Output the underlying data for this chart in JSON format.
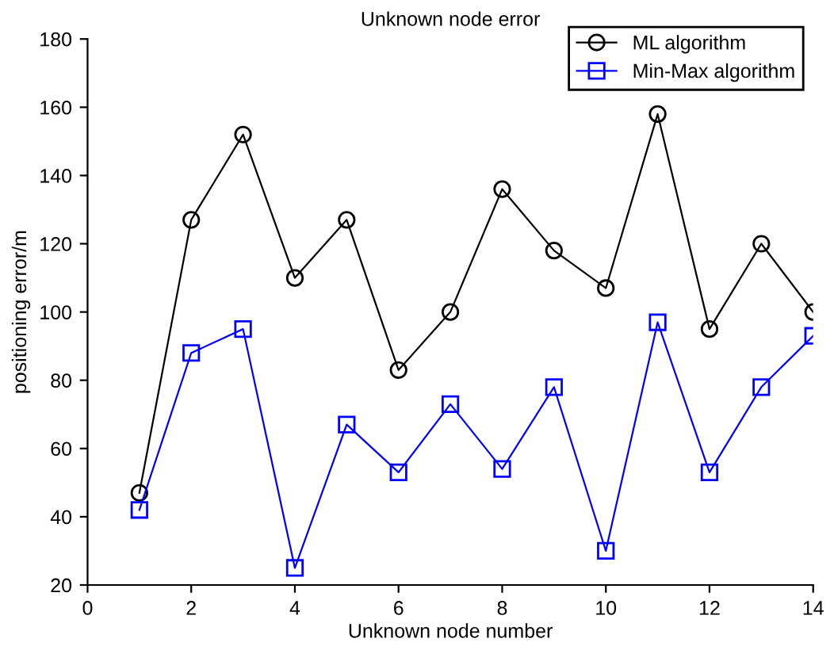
{
  "chart_data": {
    "type": "line",
    "title": "Unknown node error",
    "xlabel": "Unknown node number",
    "ylabel": "positioning error/m",
    "x": [
      1,
      2,
      3,
      4,
      5,
      6,
      7,
      8,
      9,
      10,
      11,
      12,
      13,
      14
    ],
    "series": [
      {
        "name": "ML algorithm",
        "color": "#000000",
        "marker": "circle",
        "values": [
          47,
          127,
          152,
          110,
          127,
          83,
          100,
          136,
          118,
          107,
          158,
          95,
          120,
          100
        ]
      },
      {
        "name": "Min-Max algorithm",
        "color": "#0000ff",
        "marker": "square",
        "values": [
          42,
          88,
          95,
          25,
          67,
          53,
          73,
          54,
          78,
          30,
          97,
          53,
          78,
          93
        ]
      }
    ],
    "xlim": [
      0,
      14
    ],
    "xticks": [
      0,
      2,
      4,
      6,
      8,
      10,
      12,
      14
    ],
    "ylim": [
      20,
      180
    ],
    "yticks": [
      20,
      40,
      60,
      80,
      100,
      120,
      140,
      160,
      180
    ],
    "grid": false,
    "legend": "top right",
    "line_style": "solid"
  }
}
